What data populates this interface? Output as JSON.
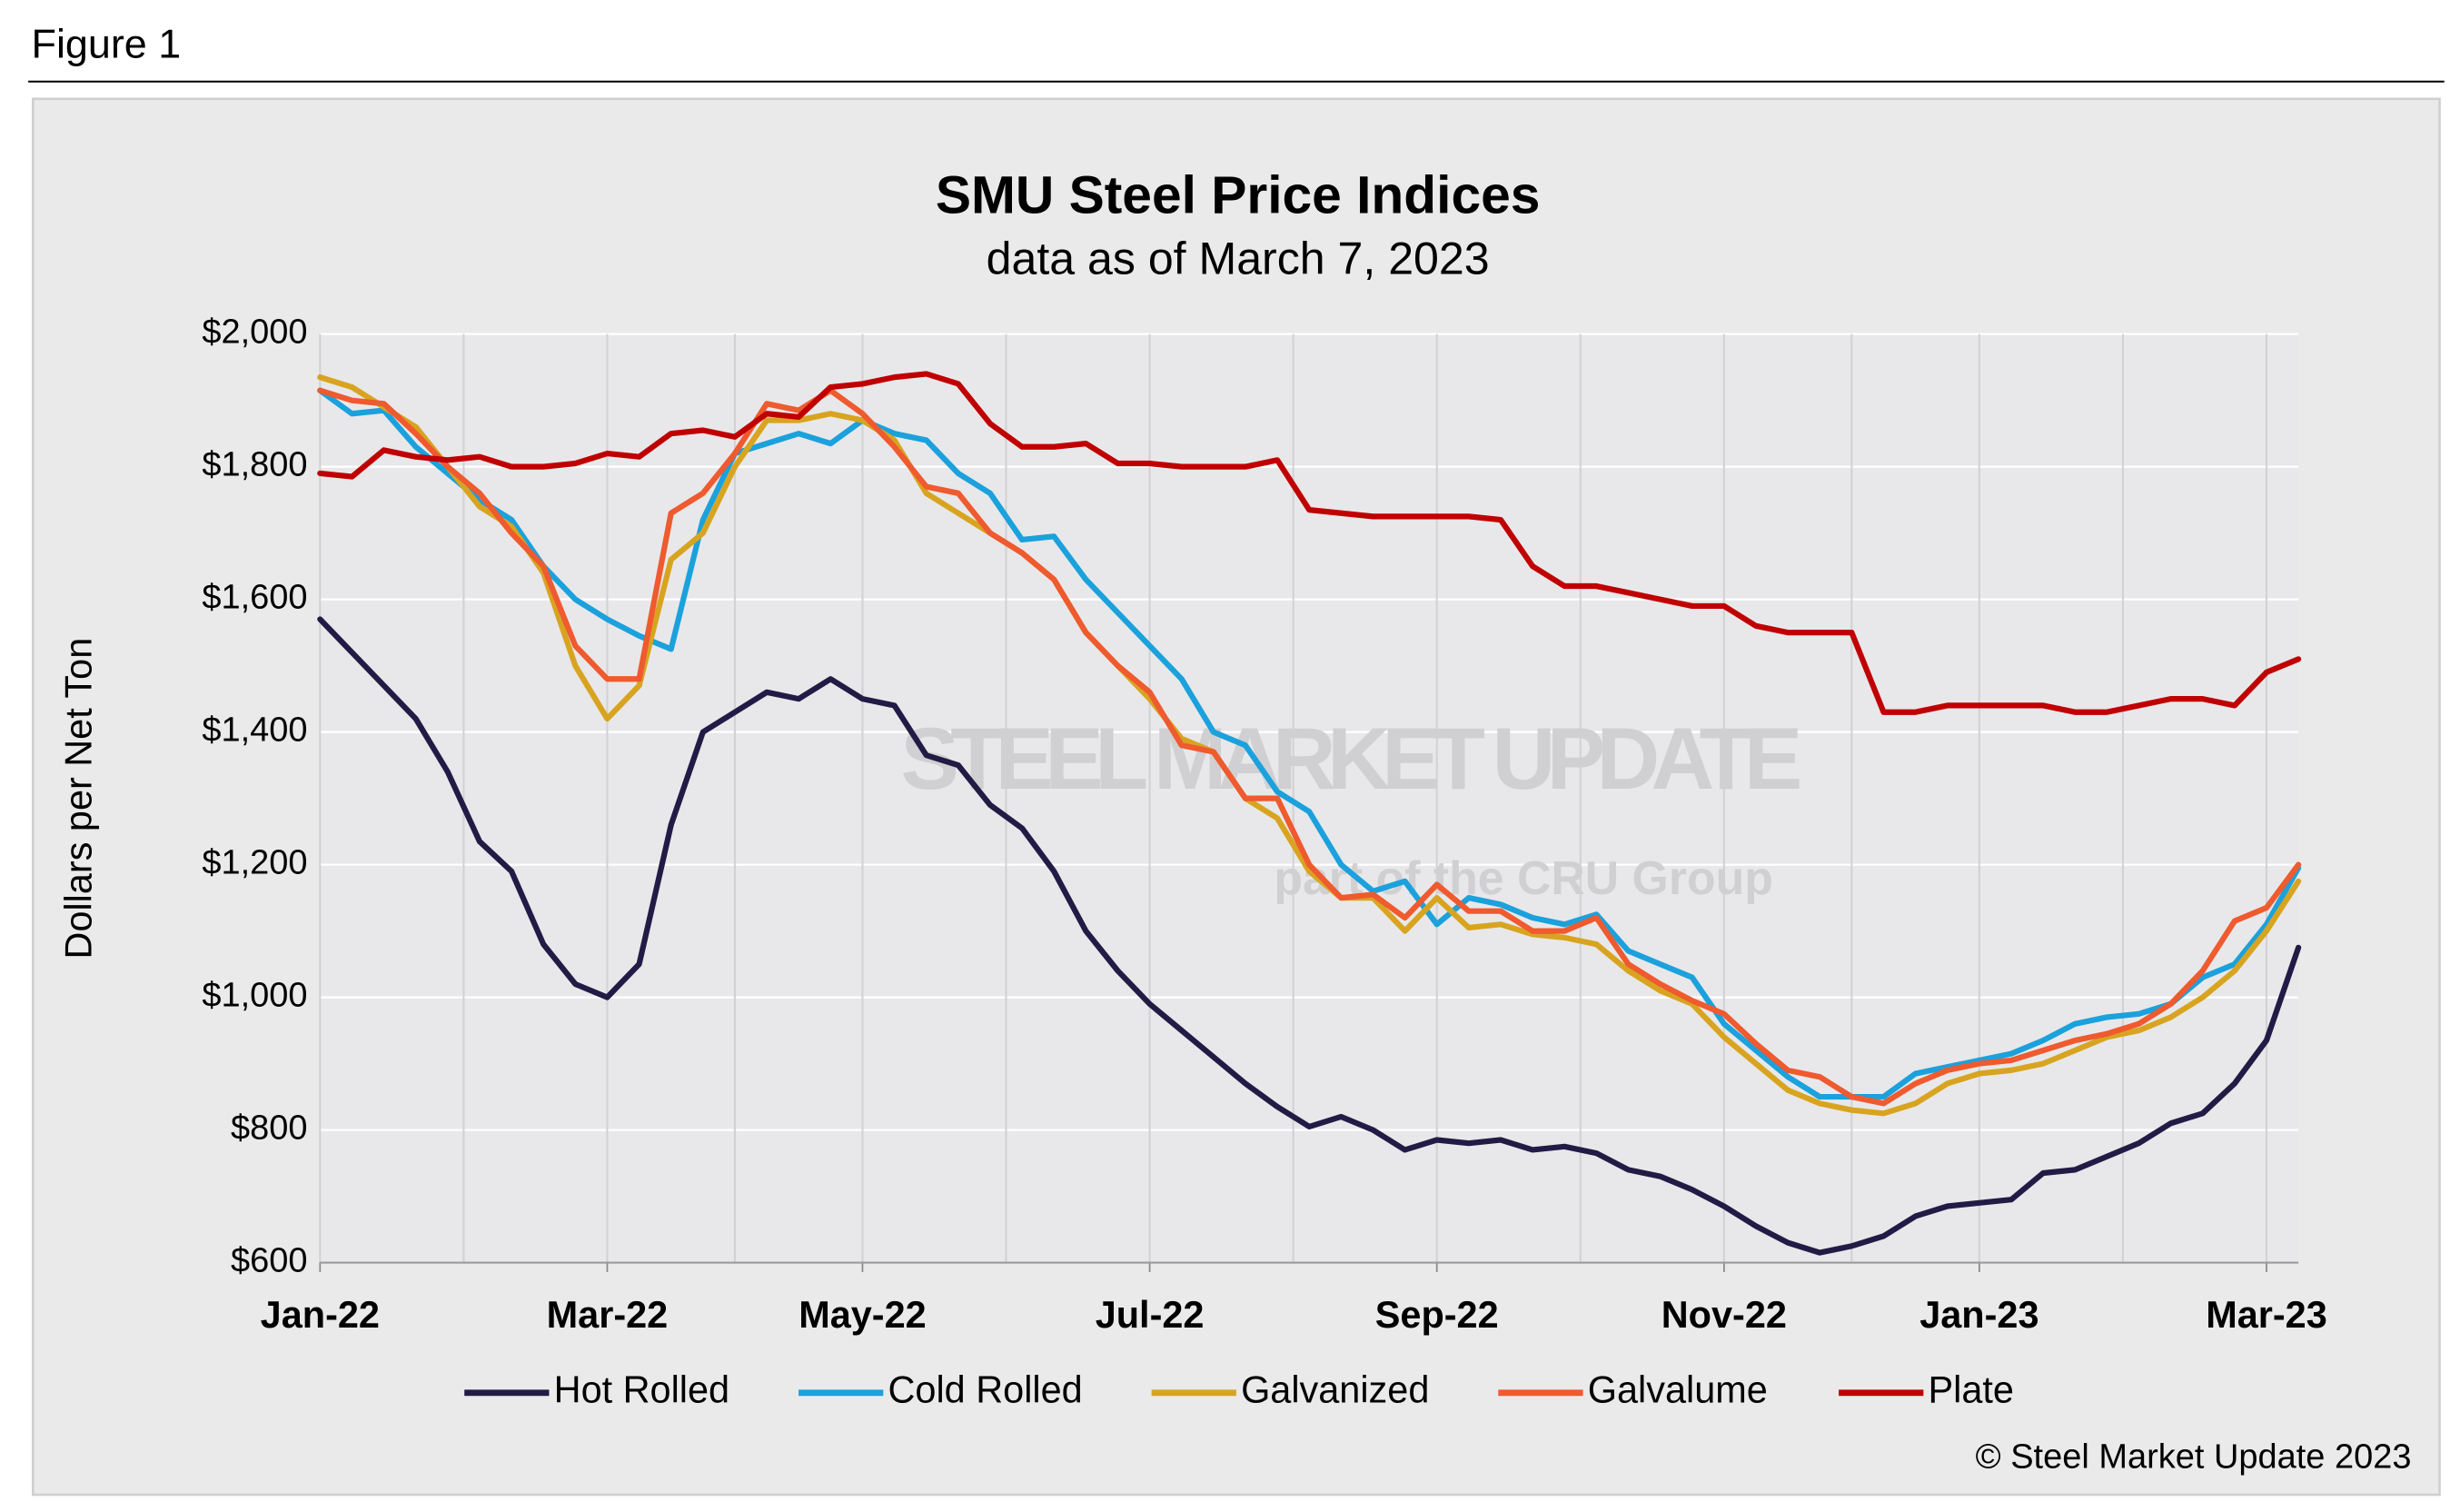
{
  "figure_label": "Figure 1",
  "chart_data": {
    "type": "line",
    "title": "SMU Steel Price Indices",
    "subtitle": "data as of March 7, 2023",
    "y_label": "Dollars per Net Ton",
    "watermark": "STEEL MARKET UPDATE",
    "watermark_sub": "part of the CRU Group",
    "copyright": "© Steel Market Update 2023",
    "categories": [
      "Jan-22",
      null,
      null,
      null,
      null,
      null,
      null,
      null,
      null,
      "Mar-22",
      null,
      null,
      null,
      null,
      null,
      null,
      null,
      "May-22",
      null,
      null,
      null,
      null,
      null,
      null,
      null,
      null,
      "Jul-22",
      null,
      null,
      null,
      null,
      null,
      null,
      null,
      null,
      "Sep-22",
      null,
      null,
      null,
      null,
      null,
      null,
      null,
      null,
      "Nov-22",
      null,
      null,
      null,
      null,
      null,
      null,
      null,
      "Jan-23",
      null,
      null,
      null,
      null,
      null,
      null,
      null,
      null,
      "Mar-23",
      null
    ],
    "ylim": [
      600,
      2000
    ],
    "yticks": [
      {
        "value": 600,
        "label": "$600"
      },
      {
        "value": 800,
        "label": "$800"
      },
      {
        "value": 1000,
        "label": "$1,000"
      },
      {
        "value": 1200,
        "label": "$1,200"
      },
      {
        "value": 1400,
        "label": "$1,400"
      },
      {
        "value": 1600,
        "label": "$1,600"
      },
      {
        "value": 1800,
        "label": "$1,800"
      },
      {
        "value": 2000,
        "label": "$2,000"
      }
    ],
    "grid": true,
    "legend": "bottom",
    "series": [
      {
        "name": "Hot Rolled",
        "color": "#221b45",
        "values": [
          1570,
          1520,
          1470,
          1420,
          1340,
          1235,
          1190,
          1080,
          1020,
          1000,
          1050,
          1260,
          1400,
          1430,
          1460,
          1450,
          1480,
          1450,
          1440,
          1365,
          1350,
          1290,
          1255,
          1190,
          1100,
          1040,
          990,
          950,
          910,
          870,
          835,
          805,
          820,
          800,
          770,
          785,
          780,
          785,
          770,
          775,
          765,
          740,
          730,
          710,
          685,
          655,
          630,
          615,
          625,
          640,
          670,
          685,
          690,
          695,
          735,
          740,
          760,
          780,
          810,
          825,
          870,
          935,
          1075
        ]
      },
      {
        "name": "Cold Rolled",
        "color": "#1ba1dc",
        "values": [
          1915,
          1880,
          1885,
          1830,
          1790,
          1750,
          1720,
          1650,
          1600,
          1570,
          1545,
          1525,
          1720,
          1820,
          1835,
          1850,
          1835,
          1870,
          1850,
          1840,
          1790,
          1760,
          1690,
          1695,
          1630,
          1580,
          1530,
          1480,
          1400,
          1380,
          1310,
          1280,
          1200,
          1160,
          1175,
          1110,
          1150,
          1140,
          1120,
          1110,
          1125,
          1070,
          1050,
          1030,
          960,
          920,
          880,
          850,
          850,
          850,
          885,
          895,
          905,
          915,
          935,
          960,
          970,
          975,
          990,
          1030,
          1050,
          1110,
          1195
        ]
      },
      {
        "name": "Galvanized",
        "color": "#d8a420",
        "values": [
          1935,
          1920,
          1890,
          1860,
          1800,
          1740,
          1710,
          1640,
          1500,
          1420,
          1470,
          1660,
          1700,
          1800,
          1870,
          1870,
          1880,
          1870,
          1840,
          1760,
          1730,
          1700,
          1670,
          1630,
          1550,
          1500,
          1450,
          1390,
          1370,
          1300,
          1270,
          1190,
          1150,
          1150,
          1100,
          1150,
          1105,
          1110,
          1095,
          1090,
          1080,
          1040,
          1010,
          990,
          940,
          900,
          860,
          840,
          830,
          825,
          840,
          870,
          885,
          890,
          900,
          920,
          940,
          950,
          970,
          1000,
          1040,
          1100,
          1175
        ]
      },
      {
        "name": "Galvalume",
        "color": "#ef5a2e",
        "values": [
          1915,
          1900,
          1895,
          1850,
          1800,
          1760,
          1700,
          1650,
          1530,
          1480,
          1480,
          1730,
          1760,
          1820,
          1895,
          1885,
          1915,
          1880,
          1830,
          1770,
          1760,
          1700,
          1670,
          1630,
          1550,
          1500,
          1460,
          1380,
          1370,
          1300,
          1300,
          1200,
          1150,
          1155,
          1120,
          1170,
          1130,
          1130,
          1100,
          1100,
          1120,
          1050,
          1020,
          995,
          975,
          930,
          890,
          880,
          850,
          840,
          870,
          890,
          900,
          905,
          920,
          935,
          945,
          960,
          990,
          1040,
          1115,
          1135,
          1200
        ]
      },
      {
        "name": "Plate",
        "color": "#c00000",
        "values": [
          1790,
          1785,
          1825,
          1815,
          1810,
          1815,
          1800,
          1800,
          1805,
          1820,
          1815,
          1850,
          1855,
          1845,
          1880,
          1875,
          1920,
          1925,
          1935,
          1940,
          1925,
          1865,
          1830,
          1830,
          1835,
          1805,
          1805,
          1800,
          1800,
          1800,
          1810,
          1735,
          1730,
          1725,
          1725,
          1725,
          1725,
          1720,
          1650,
          1620,
          1620,
          1610,
          1600,
          1590,
          1590,
          1560,
          1550,
          1550,
          1550,
          1430,
          1430,
          1440,
          1440,
          1440,
          1440,
          1430,
          1430,
          1440,
          1450,
          1450,
          1440,
          1490,
          1510
        ]
      }
    ]
  }
}
